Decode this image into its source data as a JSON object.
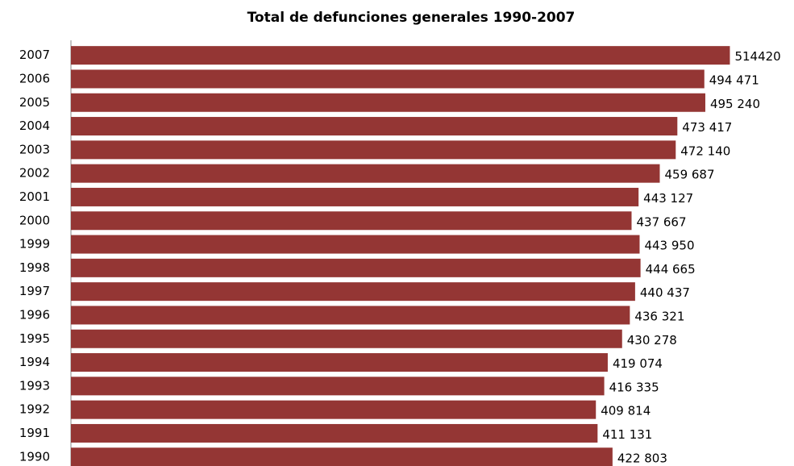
{
  "chart_data": {
    "type": "barh",
    "title": "Total de defunciones generales 1990-2007",
    "categories": [
      "2007",
      "2006",
      "2005",
      "2004",
      "2003",
      "2002",
      "2001",
      "2000",
      "1999",
      "1998",
      "1997",
      "1996",
      "1995",
      "1994",
      "1993",
      "1992",
      "1991",
      "1990"
    ],
    "values": [
      514420,
      494471,
      495240,
      473417,
      472140,
      459687,
      443127,
      437667,
      443950,
      444665,
      440437,
      436321,
      430278,
      419074,
      416335,
      409814,
      411131,
      422803
    ],
    "value_labels": [
      "514420",
      "494 471",
      "495 240",
      "473 417",
      "472 140",
      "459 687",
      "443 127",
      "437 667",
      "443 950",
      "444 665",
      "440 437",
      "436 321",
      "430 278",
      "419 074",
      "416 335",
      "409 814",
      "411 131",
      "422 803"
    ],
    "color": "#943634",
    "xlim": [
      0,
      550000
    ]
  }
}
